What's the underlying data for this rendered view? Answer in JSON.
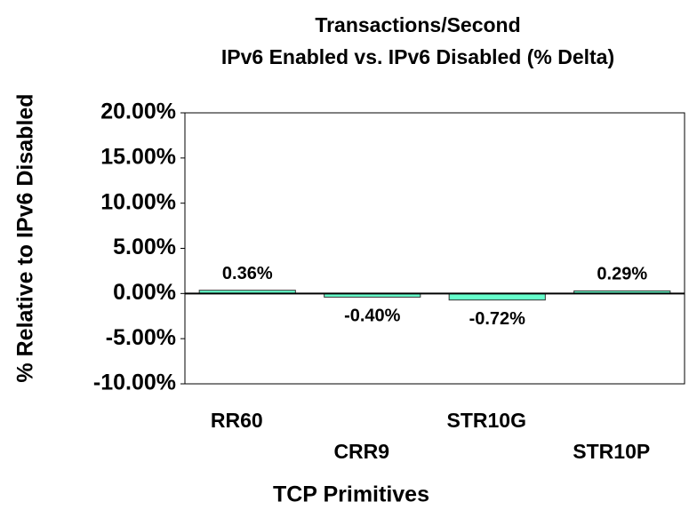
{
  "chart_data": {
    "type": "bar",
    "title": "Transactions/Second",
    "subtitle": "IPv6 Enabled  vs. IPv6 Disabled  (% Delta)",
    "x_label": "TCP Primitives",
    "y_label": "% Relative to IPv6 Disabled",
    "categories": [
      "RR60",
      "CRR9",
      "STR10G",
      "STR10P"
    ],
    "values": [
      0.36,
      -0.4,
      -0.72,
      0.29
    ],
    "value_labels": [
      "0.36%",
      "-0.40%",
      "-0.72%",
      "0.29%"
    ],
    "color": "#66ffcc",
    "ylim": [
      -10,
      20
    ],
    "yticks": [
      {
        "value": -10,
        "label": "-10.00%"
      },
      {
        "value": -5,
        "label": "-5.00%"
      },
      {
        "value": 0,
        "label": "0.00%"
      },
      {
        "value": 5,
        "label": "5.00%"
      },
      {
        "value": 10,
        "label": "10.00%"
      },
      {
        "value": 15,
        "label": "15.00%"
      },
      {
        "value": 20,
        "label": "20.00%"
      }
    ],
    "grid": false
  }
}
